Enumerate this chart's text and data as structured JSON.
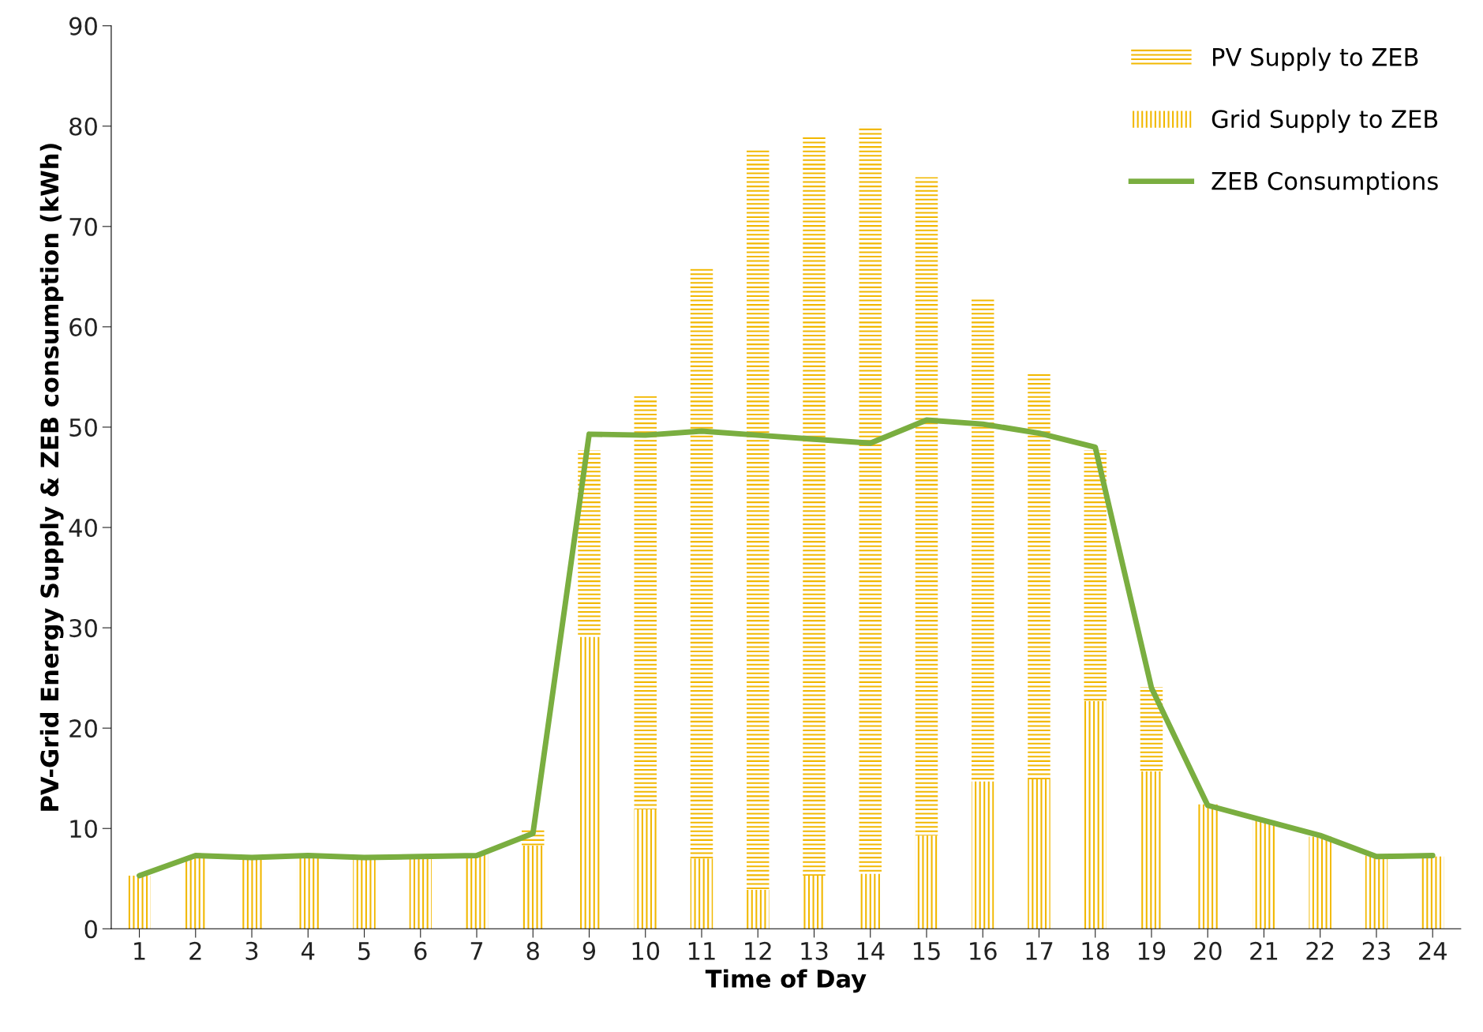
{
  "chart_data": {
    "type": "bar",
    "stacked": true,
    "xlabel": "Time of Day",
    "ylabel": "PV-Grid Energy Supply & ZEB consumption (kWh)",
    "categories": [
      "1",
      "2",
      "3",
      "4",
      "5",
      "6",
      "7",
      "8",
      "9",
      "10",
      "11",
      "12",
      "13",
      "14",
      "15",
      "16",
      "17",
      "18",
      "19",
      "20",
      "21",
      "22",
      "23",
      "24"
    ],
    "series": [
      {
        "name": "Grid Supply to ZEB",
        "color": "#f2b800",
        "values": [
          5.3,
          7.2,
          7.2,
          7.2,
          7.2,
          7.2,
          7.5,
          8.3,
          29.1,
          11.9,
          7.0,
          3.9,
          5.3,
          5.5,
          9.3,
          14.7,
          14.9,
          22.7,
          15.7,
          12.4,
          10.8,
          9.2,
          7.3,
          7.2
        ]
      },
      {
        "name": "PV Supply to ZEB",
        "color": "#f2b800",
        "values": [
          0,
          0,
          0,
          0,
          0,
          0,
          0,
          1.7,
          18.6,
          41.2,
          58.8,
          73.8,
          73.8,
          74.5,
          65.6,
          48.1,
          40.4,
          25.0,
          8.4,
          0,
          0,
          0,
          0,
          0
        ]
      },
      {
        "name": "ZEB Consumptions",
        "type": "line",
        "color": "#7aae40",
        "values": [
          5.3,
          7.3,
          7.1,
          7.3,
          7.1,
          7.2,
          7.3,
          9.5,
          49.3,
          49.2,
          49.6,
          49.2,
          48.8,
          48.4,
          50.7,
          50.3,
          49.4,
          48.0,
          24.0,
          12.3,
          10.8,
          9.3,
          7.2,
          7.3
        ]
      }
    ],
    "ylim": [
      0,
      90
    ],
    "yticks": [
      0,
      10,
      20,
      30,
      40,
      50,
      60,
      70,
      80,
      90
    ],
    "grid": false,
    "legend": "top right"
  }
}
